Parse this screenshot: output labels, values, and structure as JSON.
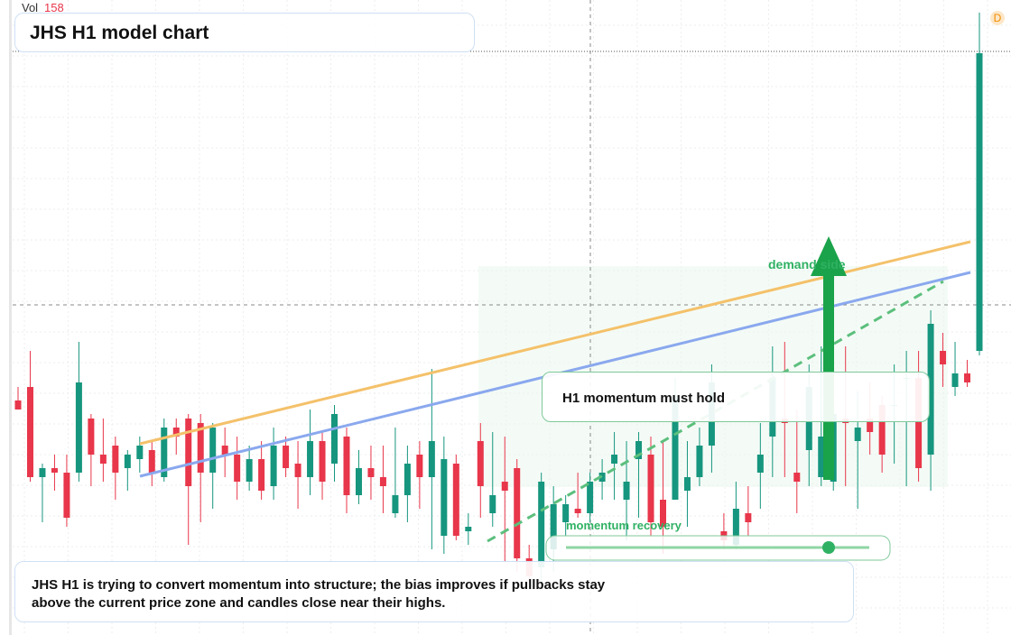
{
  "chart_data": {
    "type": "candlestick",
    "title": "JHS H1 model chart",
    "volume_label": "Vol",
    "volume_value": 158,
    "badge": "D",
    "annotations": [
      "demand side",
      "H1 momentum must hold",
      "momentum recovery"
    ],
    "description": "JHS H1 is trying to convert momentum into structure; the bias improves if pullbacks stay above the current price zone and candles close near their highs.",
    "up_color": "#16967e",
    "down_color": "#e8364a",
    "ylim": [
      0,
      140.8
    ],
    "open": [
      52,
      55,
      35,
      37,
      36,
      36,
      48,
      40,
      42,
      37,
      39,
      41,
      35,
      46,
      48,
      47,
      36,
      42,
      40,
      34,
      39,
      33,
      42,
      38,
      35,
      43,
      38,
      44,
      31,
      37,
      35,
      27,
      31,
      40,
      35,
      22,
      38,
      23,
      43,
      27,
      34,
      37,
      17,
      15,
      19,
      25,
      28,
      27,
      34,
      38,
      30,
      39,
      40,
      30,
      30,
      32,
      35,
      42,
      23,
      20,
      27,
      36,
      44,
      48,
      36,
      41,
      35,
      34,
      48,
      43,
      48,
      51,
      51,
      57,
      57,
      40,
      63,
      55,
      58,
      63
    ],
    "high": [
      55,
      63,
      38,
      40,
      40,
      65,
      49,
      48,
      44,
      41,
      44,
      43,
      48,
      48,
      49,
      49,
      47,
      46,
      44,
      42,
      43,
      46,
      44,
      43,
      50,
      45,
      51,
      46,
      41,
      42,
      42,
      46,
      42,
      43,
      59,
      44,
      40,
      27,
      47,
      45,
      44,
      39,
      20,
      36,
      33,
      31,
      36,
      36,
      39,
      45,
      43,
      45,
      44,
      43,
      57,
      43,
      46,
      60,
      27,
      34,
      33,
      47,
      64,
      65,
      50,
      60,
      64,
      60,
      64,
      54,
      56,
      53,
      60,
      63,
      63,
      72,
      67,
      65,
      61,
      138
    ],
    "low": [
      50,
      34,
      25,
      32,
      24,
      34,
      33,
      34,
      30,
      32,
      36,
      33,
      34,
      40,
      20,
      25,
      28,
      35,
      30,
      32,
      30,
      30,
      35,
      28,
      31,
      30,
      34,
      27,
      29,
      30,
      27,
      26,
      25,
      28,
      19,
      18,
      21,
      20,
      26,
      24,
      16,
      14,
      12,
      12,
      14,
      22,
      26,
      25,
      30,
      30,
      21,
      26,
      22,
      18,
      30,
      24,
      33,
      36,
      19,
      19,
      22,
      28,
      35,
      35,
      27,
      33,
      33,
      32,
      33,
      28,
      40,
      36,
      38,
      33,
      34,
      32,
      55,
      53,
      55,
      62
    ],
    "close": [
      50,
      35,
      37,
      36,
      26,
      56,
      40,
      38,
      36,
      40,
      42,
      36,
      46,
      44,
      33,
      36,
      46,
      40,
      34,
      39,
      32,
      42,
      37,
      35,
      43,
      34,
      49,
      31,
      37,
      35,
      33,
      31,
      38,
      35,
      43,
      39,
      22,
      24,
      33,
      31,
      32,
      17,
      13,
      34,
      29,
      29,
      27,
      34,
      36,
      40,
      34,
      43,
      25,
      24,
      53,
      35,
      42,
      56,
      21,
      28,
      25,
      40,
      57,
      47,
      34,
      55,
      44,
      49,
      47,
      46,
      45,
      40,
      51,
      57,
      37,
      69,
      60,
      58,
      56,
      129
    ]
  }
}
